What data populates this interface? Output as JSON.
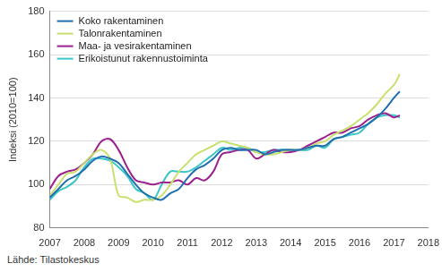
{
  "chart_data": {
    "type": "line",
    "y_label": "Indeksi (2010=100)",
    "source": "Lähde: Tilastokeskus",
    "x": [
      2007.0,
      2007.25,
      2007.5,
      2007.75,
      2008.0,
      2008.25,
      2008.5,
      2008.75,
      2009.0,
      2009.25,
      2009.5,
      2009.75,
      2010.0,
      2010.25,
      2010.5,
      2010.75,
      2011.0,
      2011.25,
      2011.5,
      2011.75,
      2012.0,
      2012.25,
      2012.5,
      2012.75,
      2013.0,
      2013.25,
      2013.5,
      2013.75,
      2014.0,
      2014.25,
      2014.5,
      2014.75,
      2015.0,
      2015.25,
      2015.5,
      2015.75,
      2016.0,
      2016.25,
      2016.5,
      2016.75,
      2017.0,
      2017.17
    ],
    "series": [
      {
        "name": "Koko rakentaminen",
        "color": "#1f6fb0",
        "values": [
          94,
          98,
          102,
          104,
          107,
          111,
          113,
          112,
          110,
          105,
          100,
          96,
          94,
          93,
          96,
          98,
          103,
          107,
          109,
          112,
          116,
          117,
          116,
          116,
          116,
          114,
          115,
          116,
          116,
          116,
          117,
          118,
          118,
          121,
          122,
          124,
          126,
          128,
          131,
          135,
          140,
          143
        ]
      },
      {
        "name": "Talonrakentaminen",
        "color": "#c8e06e",
        "values": [
          95,
          100,
          105,
          106,
          110,
          114,
          116,
          112,
          95,
          94,
          92,
          93,
          93,
          95,
          100,
          106,
          110,
          114,
          116,
          118,
          120,
          119,
          118,
          117,
          115,
          114,
          114,
          115,
          116,
          116,
          117,
          119,
          120,
          123,
          125,
          127,
          130,
          133,
          137,
          142,
          146,
          151
        ]
      },
      {
        "name": "Maa- ja vesirakentaminen",
        "color": "#9b1f8c",
        "values": [
          98,
          104,
          106,
          107,
          110,
          114,
          120,
          121,
          116,
          108,
          102,
          101,
          100,
          101,
          101,
          102,
          100,
          103,
          102,
          106,
          114,
          115,
          116,
          116,
          112,
          114,
          116,
          115,
          115,
          116,
          118,
          120,
          122,
          124,
          124,
          126,
          127,
          130,
          132,
          133,
          131,
          132
        ]
      },
      {
        "name": "Erikoistunut rakennustoiminta",
        "color": "#3cc6c8",
        "values": [
          93,
          97,
          99,
          102,
          108,
          112,
          112,
          111,
          108,
          104,
          98,
          96,
          93,
          100,
          106,
          106,
          106,
          108,
          111,
          114,
          117,
          116,
          117,
          117,
          115,
          115,
          116,
          116,
          116,
          116,
          116,
          118,
          117,
          121,
          122,
          123,
          124,
          128,
          131,
          132,
          132,
          131
        ]
      }
    ],
    "xlim": [
      2007,
      2018
    ],
    "xticks": [
      2007,
      2008,
      2009,
      2010,
      2011,
      2012,
      2013,
      2014,
      2015,
      2016,
      2017,
      2018
    ],
    "ylim": [
      80,
      180
    ],
    "yticks": [
      80,
      100,
      120,
      140,
      160,
      180
    ],
    "grid": true,
    "legend": "top-left"
  }
}
